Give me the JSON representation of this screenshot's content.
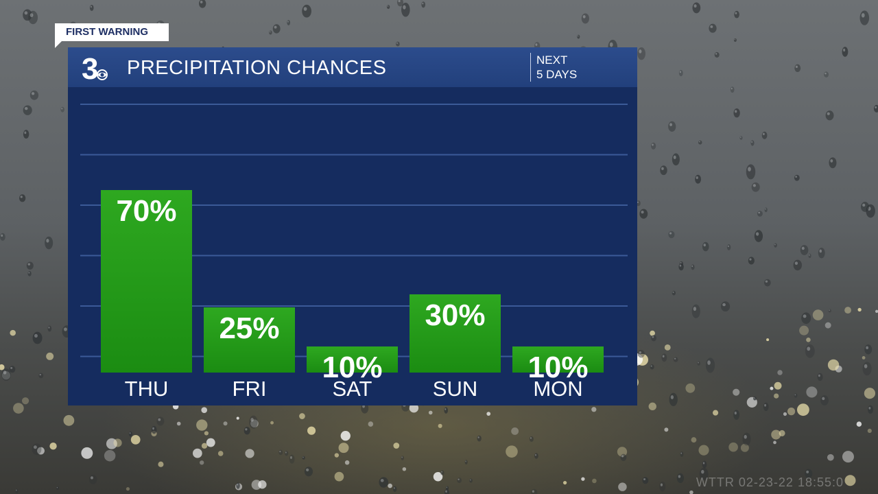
{
  "tag_label": "FIRST WARNING",
  "header": {
    "logo_text": "3",
    "title": "PRECIPITATION CHANCES",
    "next_line1": "NEXT",
    "next_line2": "5 DAYS"
  },
  "timestamp": "WTTR 02-23-22 18:55:0",
  "colors": {
    "panel": "#152c5f",
    "header": "#284884",
    "bar_top": "#2ea820",
    "bar_bottom": "#1b8c12",
    "gridline": "#3b5a98"
  },
  "chart_data": {
    "type": "bar",
    "title": "PRECIPITATION CHANCES",
    "categories": [
      "THU",
      "FRI",
      "SAT",
      "SUN",
      "MON"
    ],
    "values": [
      70,
      25,
      10,
      30,
      10
    ],
    "value_labels": [
      "70%",
      "25%",
      "10%",
      "30%",
      "10%"
    ],
    "ylim": [
      0,
      100
    ],
    "grid": true,
    "legend": "none"
  }
}
